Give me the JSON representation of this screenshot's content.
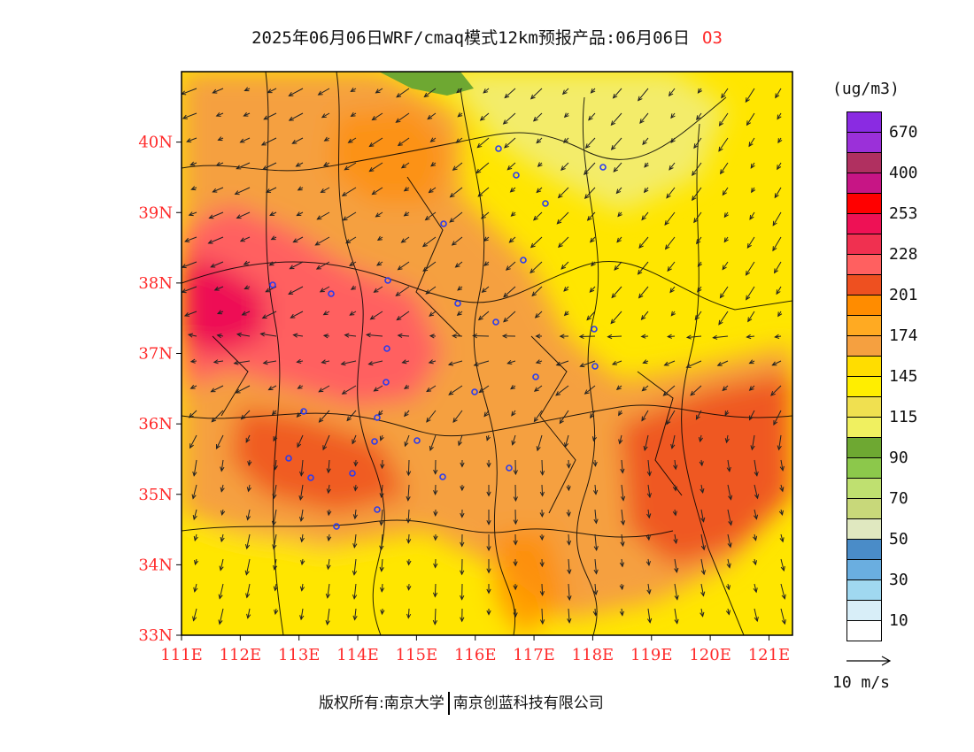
{
  "title": {
    "text": "2025年06月06日WRF/cmaq模式12km预报产品:06月06日",
    "pollutant": "O3"
  },
  "axes": {
    "lat_labels": [
      "33N",
      "34N",
      "35N",
      "36N",
      "37N",
      "38N",
      "39N",
      "40N"
    ],
    "lon_labels": [
      "111E",
      "112E",
      "113E",
      "114E",
      "115E",
      "116E",
      "117E",
      "118E",
      "119E",
      "120E",
      "121E"
    ],
    "lat_range": [
      33,
      41
    ],
    "lon_range": [
      111,
      121.4
    ],
    "tick_color": "#ff2a2a"
  },
  "legend": {
    "unit": "(ug/m3)",
    "colors": [
      "#8a2be2",
      "#9b30d9",
      "#b03060",
      "#c71585",
      "#ff0000",
      "#ee1155",
      "#f03050",
      "#ff6060",
      "#ee5020",
      "#ff8c00",
      "#ffaa22",
      "#f5a040",
      "#ffdd00",
      "#ffee00",
      "#f0e050",
      "#f0f060",
      "#6ea832",
      "#8cc84b",
      "#bfe070",
      "#c8d87a",
      "#e0e8c0",
      "#4a8cc8",
      "#6aaee0",
      "#a0d8f0",
      "#d8eef8",
      "#ffffff"
    ],
    "labels": [
      "670",
      "400",
      "253",
      "228",
      "201",
      "174",
      "145",
      "115",
      "90",
      "70",
      "50",
      "30",
      "10"
    ]
  },
  "wind_reference": {
    "label": "10 m/s"
  },
  "footer": {
    "left": "版权所有:南京大学",
    "right": "南京创蓝科技有限公司"
  }
}
